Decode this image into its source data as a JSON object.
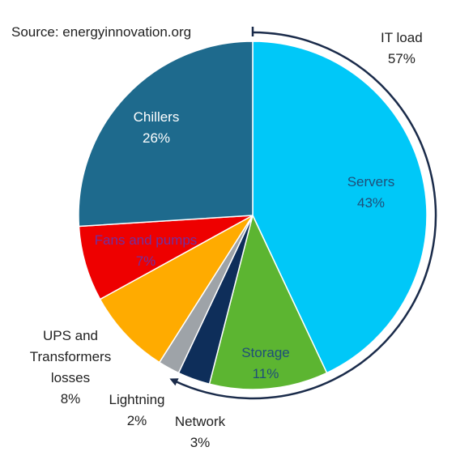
{
  "source": "Source: energyinnovation.org",
  "chart_data": {
    "type": "pie",
    "slices": [
      {
        "label": "Servers",
        "value_label": "43%",
        "value": 43,
        "color": "#00c8f8",
        "text_color": "#1f4e79"
      },
      {
        "label": "Storage",
        "value_label": "11%",
        "value": 11,
        "color": "#5cb531",
        "text_color": "#1f4e79"
      },
      {
        "label": "Network",
        "value_label": "3%",
        "value": 3,
        "color": "#0e2e5a",
        "text_color": "#222222"
      },
      {
        "label": "Lightning",
        "value_label": "2%",
        "value": 2,
        "color": "#9ea3a8",
        "text_color": "#222222"
      },
      {
        "label": "UPS and Transformers losses",
        "label_lines": [
          "UPS and",
          "Transformers",
          "losses"
        ],
        "value_label": "8%",
        "value": 8,
        "color": "#ffab00",
        "text_color": "#222222"
      },
      {
        "label": "Fans and pumps",
        "value_label": "7%",
        "value": 7,
        "color": "#ee0000",
        "text_color": "#7030a0"
      },
      {
        "label": "Chillers",
        "value_label": "26%",
        "value": 26,
        "color": "#1e6a8d",
        "text_color": "#ffffff"
      }
    ],
    "group": {
      "label": "IT load",
      "value_label": "57%",
      "value": 57,
      "color": "#1a2b4a"
    }
  }
}
